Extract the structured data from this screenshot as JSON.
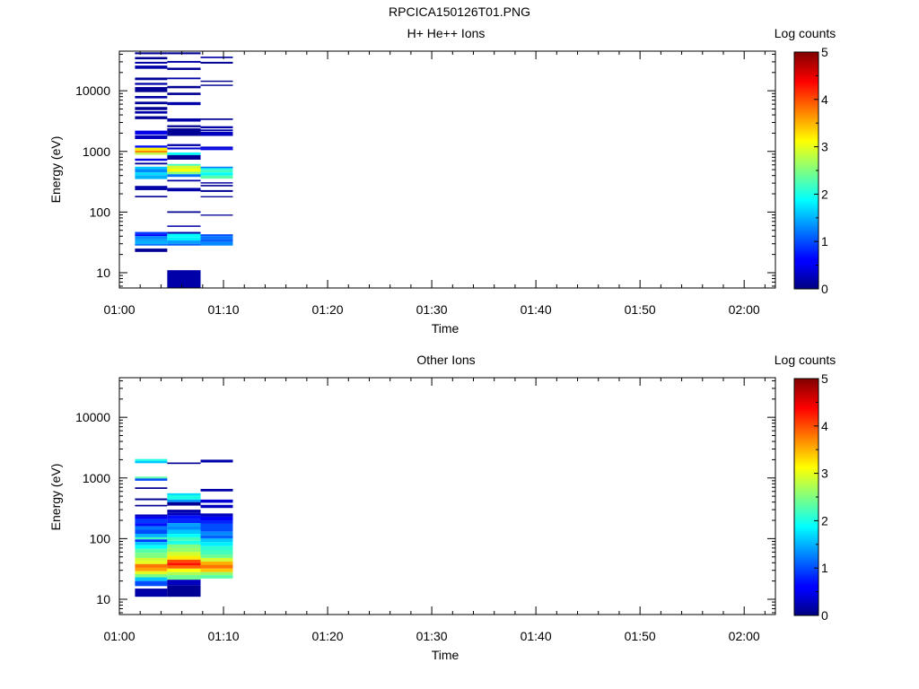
{
  "page_title": "RPCICA150126T01.PNG",
  "colors": {
    "colormap": "jet",
    "axis": "#000000",
    "background": "#ffffff"
  },
  "chart_data": [
    {
      "type": "heatmap",
      "title": "H+ He++ Ions",
      "xlabel": "Time",
      "ylabel": "Energy (eV)",
      "colorbar_label": "Log counts",
      "x_ticks": [
        "01:00",
        "01:10",
        "01:20",
        "01:30",
        "01:40",
        "01:50",
        "02:00"
      ],
      "y_ticks": [
        "10",
        "100",
        "1000",
        "10000"
      ],
      "colorbar_ticks": [
        "0",
        "1",
        "2",
        "3",
        "4",
        "5"
      ],
      "x_range_minutes": [
        0,
        63
      ],
      "y_range_ev": [
        5.6,
        45000
      ],
      "y_scale": "log",
      "c_range": [
        0,
        5
      ],
      "time_bins": [
        {
          "x0": 1.5,
          "x1": 4.6,
          "cells": [
            [
              40000,
              43000,
              0.1
            ],
            [
              33000,
              36000,
              0.1
            ],
            [
              28000,
              30000,
              0.2
            ],
            [
              23000,
              26000,
              0.2
            ],
            [
              15000,
              16500,
              0.1
            ],
            [
              12500,
              13500,
              0.2
            ],
            [
              9500,
              11500,
              0.1
            ],
            [
              7500,
              8200,
              0.2
            ],
            [
              6000,
              6600,
              0.1
            ],
            [
              4800,
              5400,
              0.1
            ],
            [
              4200,
              4600,
              0.2
            ],
            [
              3400,
              3800,
              0.1
            ],
            [
              1900,
              2200,
              0.5
            ],
            [
              1600,
              1850,
              0.3
            ],
            [
              1150,
              1250,
              0.7
            ],
            [
              1030,
              1150,
              3.2
            ],
            [
              950,
              1030,
              3.7
            ],
            [
              880,
              950,
              2.8
            ],
            [
              700,
              760,
              0.5
            ],
            [
              610,
              650,
              0.1
            ],
            [
              510,
              560,
              1.6
            ],
            [
              450,
              510,
              1.3
            ],
            [
              405,
              450,
              1.7
            ],
            [
              350,
              405,
              1.5
            ],
            [
              250,
              270,
              0.2
            ],
            [
              230,
              250,
              0.2
            ],
            [
              175,
              185,
              0.1
            ],
            [
              43,
              47,
              0.9
            ],
            [
              40,
              43,
              0.6
            ],
            [
              36,
              40,
              1.3
            ],
            [
              33,
              36,
              1.4
            ],
            [
              30,
              33,
              1.5
            ],
            [
              28,
              30,
              1.2
            ],
            [
              22,
              25,
              0.1
            ]
          ]
        },
        {
          "x0": 4.6,
          "x1": 7.8,
          "cells": [
            [
              40000,
              43000,
              0.1
            ],
            [
              29000,
              31000,
              0.2
            ],
            [
              22000,
              24000,
              0.1
            ],
            [
              15500,
              16500,
              0.2
            ],
            [
              11000,
              12000,
              0.1
            ],
            [
              8500,
              9300,
              0.1
            ],
            [
              5800,
              6500,
              0.2
            ],
            [
              3100,
              3500,
              0.2
            ],
            [
              2500,
              2700,
              0.1
            ],
            [
              1800,
              2400,
              0.1
            ],
            [
              1220,
              1320,
              0.2
            ],
            [
              1080,
              1160,
              0.4
            ],
            [
              870,
              960,
              1.9
            ],
            [
              730,
              870,
              0.1
            ],
            [
              580,
              620,
              2.2
            ],
            [
              520,
              580,
              2.9
            ],
            [
              460,
              520,
              3.1
            ],
            [
              420,
              460,
              2.5
            ],
            [
              380,
              420,
              1.2
            ],
            [
              320,
              340,
              0.2
            ],
            [
              220,
              250,
              0.2
            ],
            [
              97,
              103,
              0.1
            ],
            [
              57,
              60,
              0.2
            ],
            [
              44,
              47,
              0.2
            ],
            [
              38,
              44,
              1.9
            ],
            [
              34,
              38,
              1.8
            ],
            [
              30,
              34,
              1.4
            ],
            [
              28,
              30,
              1.1
            ],
            [
              5.6,
              11,
              0.2
            ]
          ]
        },
        {
          "x0": 7.8,
          "x1": 10.9,
          "cells": [
            [
              34500,
              36500,
              0.2
            ],
            [
              28000,
              30000,
              0.1
            ],
            [
              14000,
              14700,
              0.1
            ],
            [
              12000,
              12600,
              0.1
            ],
            [
              3300,
              3500,
              0.1
            ],
            [
              2400,
              2600,
              0.2
            ],
            [
              2150,
              2300,
              0.2
            ],
            [
              1800,
              2100,
              0.3
            ],
            [
              1130,
              1200,
              0.4
            ],
            [
              1050,
              1130,
              0.5
            ],
            [
              530,
              560,
              1.2
            ],
            [
              490,
              530,
              2.0
            ],
            [
              450,
              490,
              2.2
            ],
            [
              400,
              450,
              1.9
            ],
            [
              355,
              400,
              2.3
            ],
            [
              295,
              310,
              0.2
            ],
            [
              265,
              280,
              0.1
            ],
            [
              215,
              230,
              0.1
            ],
            [
              175,
              183,
              0.1
            ],
            [
              87,
              91,
              0.1
            ],
            [
              40,
              43,
              1.0
            ],
            [
              36,
              40,
              1.2
            ],
            [
              32,
              36,
              1.1
            ],
            [
              28,
              32,
              1.3
            ]
          ]
        }
      ]
    },
    {
      "type": "heatmap",
      "title": "Other Ions",
      "xlabel": "Time",
      "ylabel": "Energy (eV)",
      "colorbar_label": "Log counts",
      "x_ticks": [
        "01:00",
        "01:10",
        "01:20",
        "01:30",
        "01:40",
        "01:50",
        "02:00"
      ],
      "y_ticks": [
        "10",
        "100",
        "1000",
        "10000"
      ],
      "colorbar_ticks": [
        "0",
        "1",
        "2",
        "3",
        "4",
        "5"
      ],
      "x_range_minutes": [
        0,
        63
      ],
      "y_range_ev": [
        5.6,
        45000
      ],
      "y_scale": "log",
      "c_range": [
        0,
        5
      ],
      "time_bins": [
        {
          "x0": 1.5,
          "x1": 4.6,
          "cells": [
            [
              1900,
              2050,
              2.0
            ],
            [
              1750,
              1900,
              1.6
            ],
            [
              980,
              1050,
              2.3
            ],
            [
              900,
              980,
              1.0
            ],
            [
              660,
              700,
              0.1
            ],
            [
              430,
              460,
              0.1
            ],
            [
              340,
              360,
              0.1
            ],
            [
              230,
              250,
              0.3
            ],
            [
              210,
              230,
              0.6
            ],
            [
              180,
              210,
              0.9
            ],
            [
              160,
              180,
              0.7
            ],
            [
              140,
              160,
              1.2
            ],
            [
              120,
              140,
              1.0
            ],
            [
              105,
              120,
              1.5
            ],
            [
              97,
              105,
              2.2
            ],
            [
              88,
              97,
              0.9
            ],
            [
              78,
              88,
              1.6
            ],
            [
              68,
              78,
              1.9
            ],
            [
              58,
              68,
              2.3
            ],
            [
              48,
              58,
              2.5
            ],
            [
              43,
              48,
              2.9
            ],
            [
              38,
              43,
              3.0
            ],
            [
              33,
              38,
              3.8
            ],
            [
              29,
              33,
              3.6
            ],
            [
              26,
              29,
              3.0
            ],
            [
              23,
              26,
              2.5
            ],
            [
              20,
              23,
              1.6
            ],
            [
              16.5,
              20,
              1.0
            ],
            [
              11,
              15,
              0.2
            ]
          ]
        },
        {
          "x0": 4.6,
          "x1": 7.8,
          "cells": [
            [
              1700,
              1800,
              0.1
            ],
            [
              520,
              560,
              1.7
            ],
            [
              440,
              520,
              2.0
            ],
            [
              400,
              440,
              1.4
            ],
            [
              350,
              400,
              0.1
            ],
            [
              270,
              300,
              0.2
            ],
            [
              240,
              270,
              0.3
            ],
            [
              210,
              240,
              0.7
            ],
            [
              180,
              210,
              0.8
            ],
            [
              160,
              180,
              1.4
            ],
            [
              140,
              160,
              1.3
            ],
            [
              120,
              140,
              1.6
            ],
            [
              105,
              120,
              1.9
            ],
            [
              92,
              105,
              2.2
            ],
            [
              80,
              92,
              2.0
            ],
            [
              70,
              80,
              2.5
            ],
            [
              60,
              70,
              2.6
            ],
            [
              52,
              60,
              2.9
            ],
            [
              45,
              52,
              3.2
            ],
            [
              40,
              45,
              4.0
            ],
            [
              36,
              40,
              4.3
            ],
            [
              32,
              36,
              3.9
            ],
            [
              28,
              32,
              3.1
            ],
            [
              25,
              28,
              2.7
            ],
            [
              21,
              25,
              2.4
            ],
            [
              17,
              21,
              0.3
            ],
            [
              11,
              17,
              0.1
            ]
          ]
        },
        {
          "x0": 7.8,
          "x1": 10.9,
          "cells": [
            [
              1800,
              2000,
              0.2
            ],
            [
              600,
              660,
              0.2
            ],
            [
              390,
              440,
              0.4
            ],
            [
              320,
              360,
              0.3
            ],
            [
              230,
              260,
              0.3
            ],
            [
              200,
              230,
              0.6
            ],
            [
              175,
              200,
              0.8
            ],
            [
              150,
              175,
              1.0
            ],
            [
              130,
              150,
              1.0
            ],
            [
              113,
              130,
              1.3
            ],
            [
              100,
              113,
              1.1
            ],
            [
              88,
              100,
              1.6
            ],
            [
              75,
              88,
              1.8
            ],
            [
              64,
              75,
              2.1
            ],
            [
              55,
              64,
              2.2
            ],
            [
              48,
              55,
              2.4
            ],
            [
              42,
              48,
              2.9
            ],
            [
              37,
              42,
              3.5
            ],
            [
              32,
              37,
              3.8
            ],
            [
              28,
              32,
              3.4
            ],
            [
              25,
              28,
              2.6
            ],
            [
              22,
              25,
              2.3
            ]
          ]
        }
      ]
    }
  ]
}
